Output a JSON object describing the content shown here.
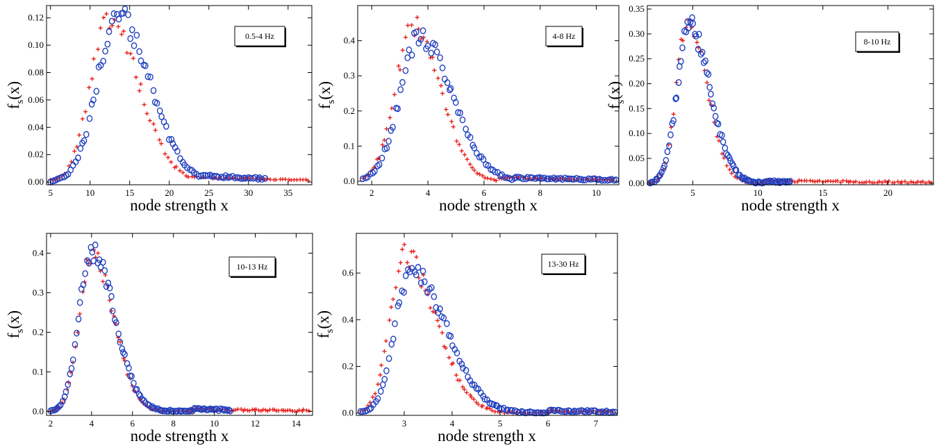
{
  "colors": {
    "series_cross": "#e8201c",
    "series_circle": "#1f3fbf",
    "axis": "#000000"
  },
  "chart_data": [
    {
      "type": "scatter",
      "annotation": "0.5-4 Hz",
      "xlabel": "node strength x",
      "ylabel": "f",
      "ylabel_sub": "s",
      "ylabel_tail": "(x)",
      "xlim": [
        4.5,
        38
      ],
      "ylim": [
        -0.002,
        0.129
      ],
      "xticks": [
        5,
        10,
        15,
        20,
        25,
        30,
        35
      ],
      "yticks": [
        0.0,
        0.02,
        0.04,
        0.06,
        0.08,
        0.1,
        0.12
      ],
      "ytick_decimals": 2,
      "series": [
        {
          "marker": "cross",
          "start": 5,
          "end": 38,
          "peak_x": 12.3,
          "peak_y": 0.118,
          "sigma_left": 2.3,
          "sigma_right": 3.9,
          "tail_start": 22,
          "tail_value": 0.004,
          "n": 90,
          "seed": 1
        },
        {
          "marker": "circle",
          "start": 5,
          "end": 32,
          "peak_x": 13.5,
          "peak_y": 0.122,
          "sigma_left": 2.6,
          "sigma_right": 4.0,
          "tail_start": 22,
          "tail_value": 0.006,
          "n": 95,
          "seed": 2
        }
      ]
    },
    {
      "type": "scatter",
      "annotation": "4-8 Hz",
      "xlabel": "node strength x",
      "ylabel": "f",
      "ylabel_sub": "s",
      "ylabel_tail": "(x)",
      "xlim": [
        1.5,
        10.8
      ],
      "ylim": [
        -0.01,
        0.5
      ],
      "xticks": [
        2,
        4,
        6,
        8,
        10
      ],
      "yticks": [
        0.0,
        0.1,
        0.2,
        0.3,
        0.4
      ],
      "ytick_decimals": 1,
      "series": [
        {
          "marker": "cross",
          "start": 1.7,
          "end": 10.6,
          "peak_x": 3.5,
          "peak_y": 0.44,
          "sigma_left": 0.65,
          "sigma_right": 0.95,
          "tail_start": 6.5,
          "tail_value": 0.01,
          "n": 95,
          "seed": 3
        },
        {
          "marker": "circle",
          "start": 1.7,
          "end": 10.7,
          "peak_x": 3.7,
          "peak_y": 0.41,
          "sigma_left": 0.7,
          "sigma_right": 1.15,
          "tail_start": 7.0,
          "tail_value": 0.01,
          "n": 110,
          "seed": 4
        }
      ]
    },
    {
      "type": "scatter",
      "annotation": "8-10 Hz",
      "xlabel": "node strength x",
      "ylabel": "f",
      "ylabel_sub": "s",
      "ylabel_tail": "(x)",
      "xlim": [
        1.5,
        23.5
      ],
      "ylim": [
        -0.003,
        0.357
      ],
      "xticks": [
        5,
        10,
        15,
        20
      ],
      "yticks": [
        0.0,
        0.05,
        0.1,
        0.15,
        0.2,
        0.25,
        0.3,
        0.35
      ],
      "ytick_decimals": 2,
      "series": [
        {
          "marker": "cross",
          "start": 1.7,
          "end": 23.3,
          "peak_x": 4.6,
          "peak_y": 0.33,
          "sigma_left": 0.85,
          "sigma_right": 1.45,
          "tail_start": 10.5,
          "tail_value": 0.005,
          "n": 110,
          "seed": 5
        },
        {
          "marker": "circle",
          "start": 1.7,
          "end": 12.5,
          "peak_x": 4.7,
          "peak_y": 0.32,
          "sigma_left": 0.9,
          "sigma_right": 1.6,
          "tail_start": 10.5,
          "tail_value": 0.004,
          "n": 95,
          "seed": 6
        }
      ]
    },
    {
      "type": "scatter",
      "annotation": "10-13 Hz",
      "xlabel": "node strength x",
      "ylabel": "f",
      "ylabel_sub": "s",
      "ylabel_tail": "(x)",
      "xlim": [
        1.8,
        14.8
      ],
      "ylim": [
        -0.01,
        0.45
      ],
      "xticks": [
        2,
        4,
        6,
        8,
        10,
        12,
        14
      ],
      "yticks": [
        0.0,
        0.1,
        0.2,
        0.3,
        0.4
      ],
      "ytick_decimals": 1,
      "series": [
        {
          "marker": "cross",
          "start": 2.0,
          "end": 14.6,
          "peak_x": 4.0,
          "peak_y": 0.4,
          "sigma_left": 0.6,
          "sigma_right": 1.05,
          "tail_start": 9.0,
          "tail_value": 0.005,
          "n": 115,
          "seed": 7
        },
        {
          "marker": "circle",
          "start": 2.0,
          "end": 10.8,
          "peak_x": 4.0,
          "peak_y": 0.41,
          "sigma_left": 0.6,
          "sigma_right": 1.1,
          "tail_start": 9.0,
          "tail_value": 0.006,
          "n": 105,
          "seed": 8
        }
      ]
    },
    {
      "type": "scatter",
      "annotation": "13-30 Hz",
      "xlabel": "node strength x",
      "ylabel": "f",
      "ylabel_sub": "s",
      "ylabel_tail": "(x)",
      "xlim": [
        2.0,
        7.45
      ],
      "ylim": [
        -0.01,
        0.77
      ],
      "xticks": [
        3,
        4,
        5,
        6,
        7
      ],
      "yticks": [
        0.0,
        0.2,
        0.4,
        0.6
      ],
      "ytick_decimals": 1,
      "series": [
        {
          "marker": "cross",
          "start": 2.1,
          "end": 7.35,
          "peak_x": 3.0,
          "peak_y": 0.68,
          "sigma_left": 0.3,
          "sigma_right": 0.65,
          "tail_start": 6.0,
          "tail_value": 0.008,
          "n": 110,
          "seed": 9
        },
        {
          "marker": "circle",
          "start": 2.1,
          "end": 7.4,
          "peak_x": 3.15,
          "peak_y": 0.62,
          "sigma_left": 0.33,
          "sigma_right": 0.72,
          "tail_start": 6.0,
          "tail_value": 0.01,
          "n": 120,
          "seed": 10
        }
      ]
    }
  ]
}
